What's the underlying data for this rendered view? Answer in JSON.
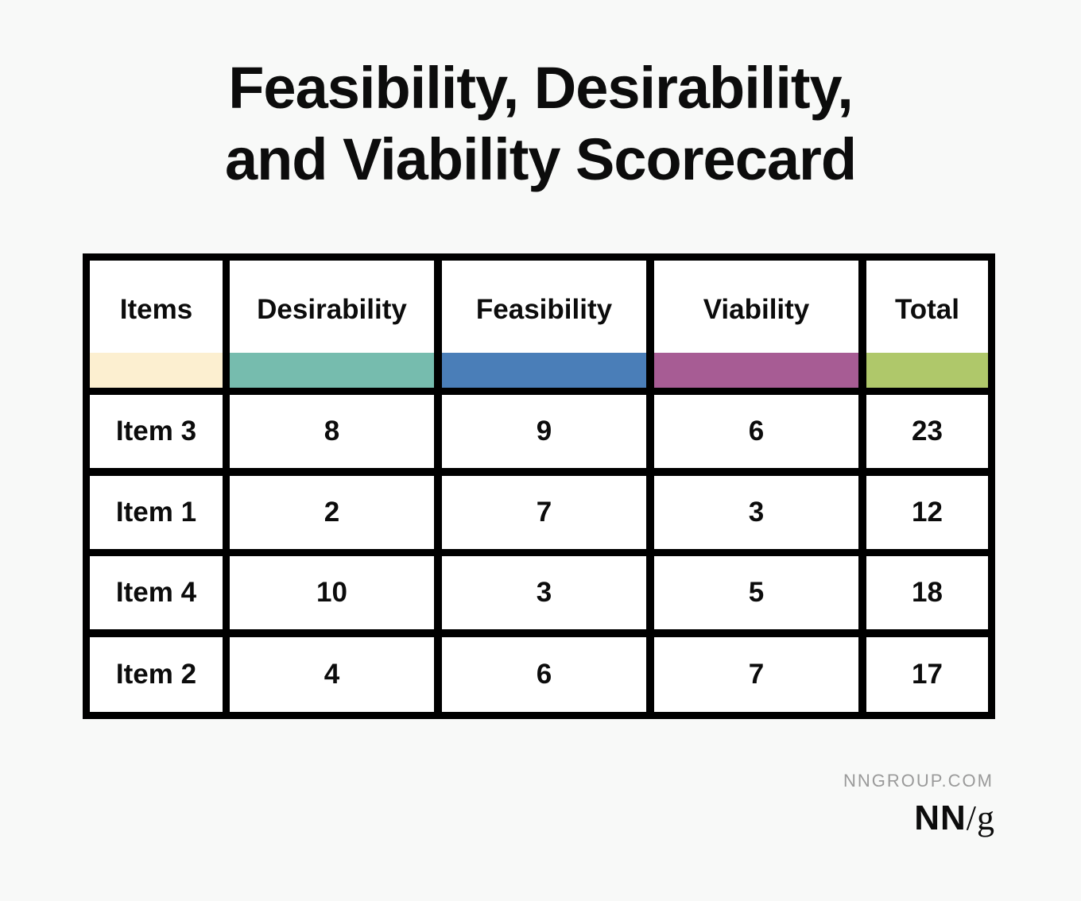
{
  "title": {
    "line1": "Feasibility, Desirability,",
    "line2": "and Viability Scorecard"
  },
  "table": {
    "headers": [
      {
        "label": "Items",
        "color": "#fcefd0"
      },
      {
        "label": "Desirability",
        "color": "#76bcae"
      },
      {
        "label": "Feasibility",
        "color": "#4a7eb8"
      },
      {
        "label": "Viability",
        "color": "#a75c94"
      },
      {
        "label": "Total",
        "color": "#afc86a"
      }
    ],
    "rows": [
      {
        "item": "Item 3",
        "desirability": "8",
        "feasibility": "9",
        "viability": "6",
        "total": "23"
      },
      {
        "item": "Item 1",
        "desirability": "2",
        "feasibility": "7",
        "viability": "3",
        "total": "12"
      },
      {
        "item": "Item 4",
        "desirability": "10",
        "feasibility": "3",
        "viability": "5",
        "total": "18"
      },
      {
        "item": "Item 2",
        "desirability": "4",
        "feasibility": "6",
        "viability": "7",
        "total": "17"
      }
    ]
  },
  "footer": {
    "site": "NNGROUP.COM",
    "logo_nn": "NN",
    "logo_g": "/g"
  }
}
